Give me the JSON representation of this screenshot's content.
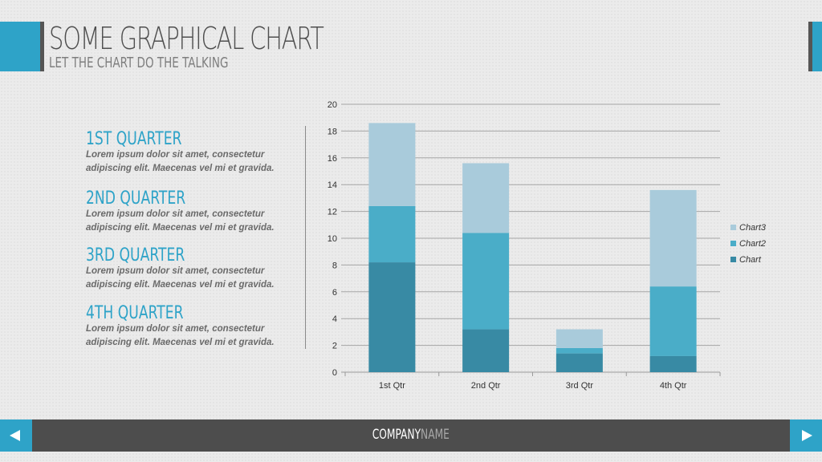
{
  "header": {
    "title": "SOME GRAPHICAL CHART",
    "subtitle": "LET THE CHART DO THE TALKING"
  },
  "quarters": [
    {
      "title": "1ST QUARTER",
      "text": "Lorem ipsum dolor sit amet, consectetur adipiscing elit. Maecenas vel mi et gravida."
    },
    {
      "title": "2ND QUARTER",
      "text": "Lorem ipsum dolor sit amet, consectetur adipiscing elit. Maecenas vel mi et gravida."
    },
    {
      "title": "3RD QUARTER",
      "text": "Lorem ipsum dolor sit amet, consectetur adipiscing elit. Maecenas vel mi et gravida."
    },
    {
      "title": "4TH QUARTER",
      "text": "Lorem ipsum dolor sit amet, consectetur adipiscing elit. Maecenas vel mi et gravida."
    }
  ],
  "footer": {
    "company_bold": "COMPANY",
    "company_light": "NAME",
    "prev_icon": "arrow-left-icon",
    "next_icon": "arrow-right-icon"
  },
  "colors": {
    "accent": "#2ea3c8",
    "footer": "#4d4d4d"
  },
  "chart_data": {
    "type": "bar",
    "stacked": true,
    "categories": [
      "1st Qtr",
      "2nd Qtr",
      "3rd Qtr",
      "4th Qtr"
    ],
    "series": [
      {
        "name": "Chart",
        "color": "#388aa4",
        "values": [
          8.2,
          3.2,
          1.4,
          1.2
        ]
      },
      {
        "name": "Chart2",
        "color": "#4aadc8",
        "values": [
          4.2,
          7.2,
          0.4,
          5.2
        ]
      },
      {
        "name": "Chart3",
        "color": "#a9cbdb",
        "values": [
          6.2,
          5.2,
          1.4,
          7.2
        ]
      }
    ],
    "ylim": [
      0,
      20
    ],
    "yticks": [
      0,
      2,
      4,
      6,
      8,
      10,
      12,
      14,
      16,
      18,
      20
    ],
    "grid": true,
    "legend": "right",
    "xlabel": "",
    "ylabel": ""
  }
}
